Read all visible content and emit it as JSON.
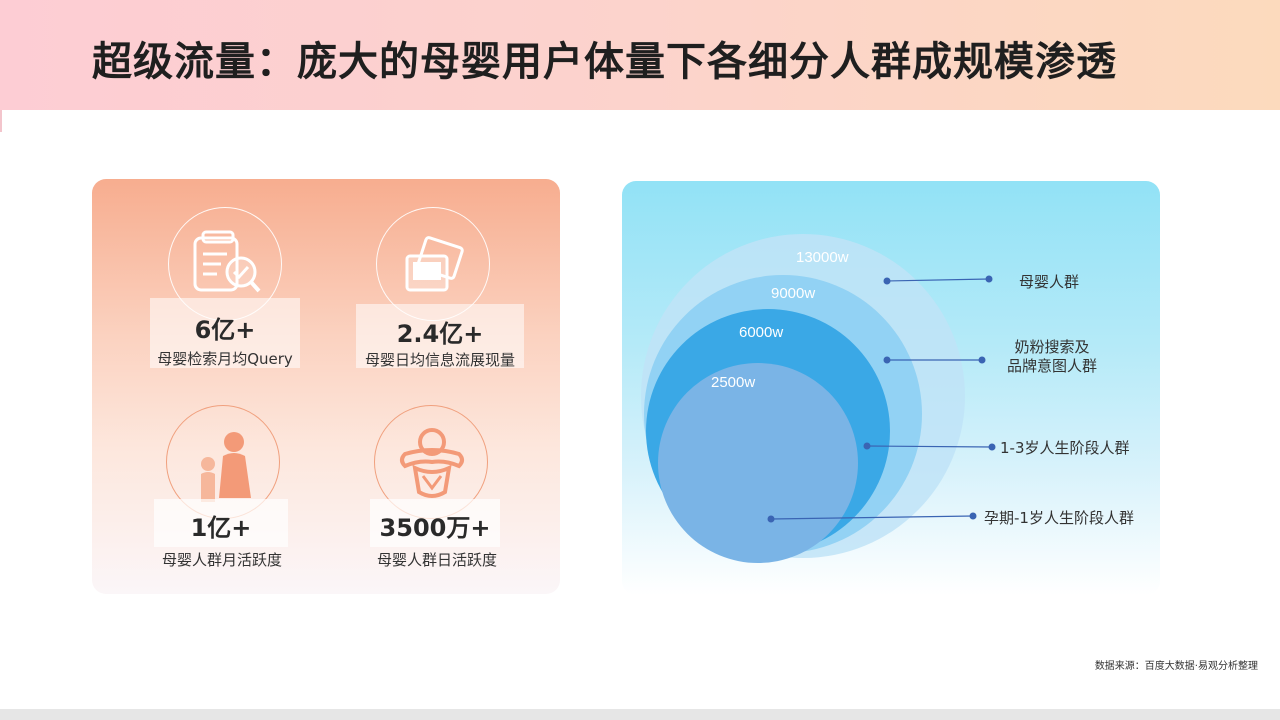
{
  "title": "超级流量：庞大的母婴用户体量下各细分人群成规模渗透",
  "metrics": [
    {
      "value": "6亿+",
      "label": "母婴检索月均Query",
      "icon": "document-search-icon"
    },
    {
      "value": "2.4亿+",
      "label": "母婴日均信息流展现量",
      "icon": "photos-icon"
    },
    {
      "value": "1亿+",
      "label": "母婴人群月活跃度",
      "icon": "mother-child-icon"
    },
    {
      "value": "3500万+",
      "label": "母婴人群日活跃度",
      "icon": "baby-icon"
    }
  ],
  "audience": {
    "circles": [
      {
        "value": "13000w",
        "label": "母婴人群",
        "color": "#bfe3f7"
      },
      {
        "value": "9000w",
        "label": [
          "奶粉搜索及",
          "品牌意图人群"
        ],
        "color": "#8dcff3"
      },
      {
        "value": "6000w",
        "label": "1-3岁人生阶段人群",
        "color": "#3aa8e6"
      },
      {
        "value": "2500w",
        "label": "孕期-1岁人生阶段人群",
        "color": "#7ab4e6"
      }
    ],
    "line_color": "#3a64b3"
  },
  "source": "数据来源：百度大数据·易观分析整理"
}
